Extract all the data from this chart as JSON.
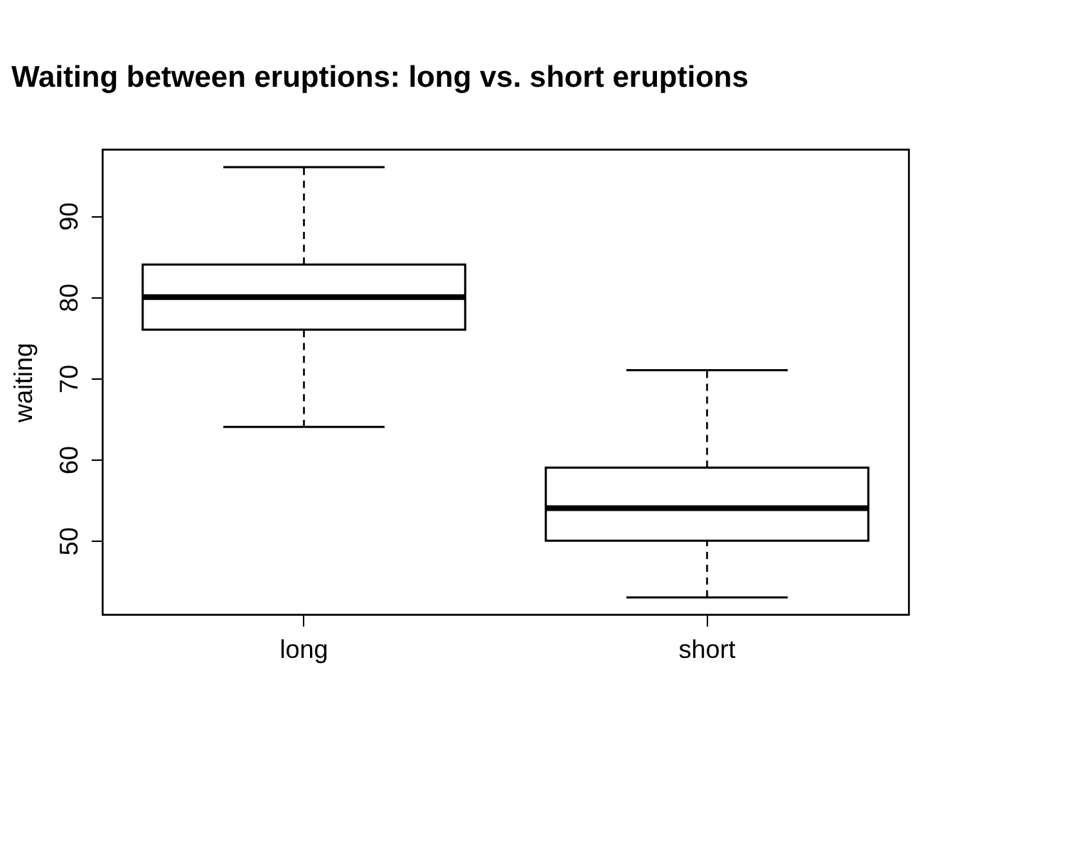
{
  "chart_data": {
    "type": "box",
    "title": "Waiting between eruptions: long vs. short eruptions",
    "ylabel": "waiting",
    "categories": [
      "long",
      "short"
    ],
    "boxes": [
      {
        "low": 64,
        "q1": 76,
        "median": 80,
        "q3": 84,
        "high": 96
      },
      {
        "low": 43,
        "q1": 50,
        "median": 54,
        "q3": 59,
        "high": 71
      }
    ],
    "ylim": [
      40.9,
      98.2
    ],
    "yticks": [
      50,
      60,
      70,
      80,
      90
    ],
    "grid": false
  }
}
